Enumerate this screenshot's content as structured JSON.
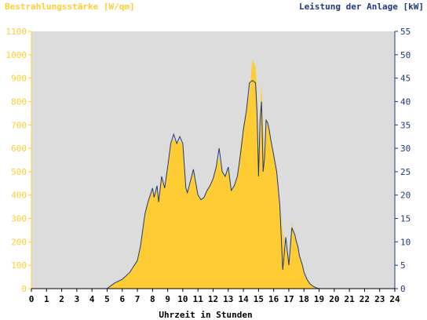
{
  "chart_data": {
    "type": "area",
    "title_left": "Bestrahlungsstärke [W/qm]",
    "title_right": "Leistung der Anlage [kW]",
    "xlabel": "Uhrzeit in Stunden",
    "x_ticks": [
      "0",
      "1",
      "2",
      "3",
      "4",
      "5",
      "6",
      "7",
      "8",
      "9",
      "10",
      "11",
      "12",
      "13",
      "14",
      "15",
      "16",
      "17",
      "18",
      "19",
      "20",
      "21",
      "22",
      "23",
      "24"
    ],
    "xlim": [
      0,
      24
    ],
    "y_left": {
      "lim": [
        0,
        1100
      ],
      "ticks": [
        "0",
        "100",
        "200",
        "300",
        "400",
        "500",
        "600",
        "700",
        "800",
        "900",
        "1000",
        "1100"
      ]
    },
    "y_right": {
      "lim": [
        0,
        55
      ],
      "ticks": [
        "0",
        "5",
        "10",
        "15",
        "20",
        "25",
        "30",
        "35",
        "40",
        "45",
        "50",
        "55"
      ]
    },
    "colors": {
      "area": "#ffcc33",
      "line": "#1f3a7a",
      "plot_bg": "#dcdcdc",
      "left_axis": "#ffcc33",
      "right_axis": "#1f3a7a"
    },
    "series": [
      {
        "name": "Bestrahlungsstärke",
        "axis": "left",
        "style": "area",
        "x": [
          0,
          5,
          5.2,
          5.5,
          6,
          6.5,
          7,
          7.2,
          7.5,
          7.7,
          8,
          8.1,
          8.3,
          8.4,
          8.6,
          8.8,
          9,
          9.2,
          9.4,
          9.6,
          9.8,
          10,
          10.2,
          10.3,
          10.5,
          10.7,
          11,
          11.2,
          11.4,
          11.6,
          11.8,
          12,
          12.2,
          12.4,
          12.6,
          12.8,
          13,
          13.2,
          13.4,
          13.6,
          13.8,
          14,
          14.2,
          14.4,
          14.6,
          14.8,
          14.9,
          15,
          15.1,
          15.2,
          15.3,
          15.4,
          15.5,
          15.6,
          15.7,
          15.8,
          16,
          16.2,
          16.4,
          16.6,
          16.8,
          17,
          17.2,
          17.4,
          17.5,
          17.6,
          17.7,
          17.8,
          17.9,
          18,
          18.2,
          18.4,
          18.6,
          18.8,
          19,
          19.3,
          19.6,
          20,
          24
        ],
        "y": [
          0,
          0,
          10,
          25,
          40,
          70,
          120,
          180,
          320,
          370,
          430,
          390,
          440,
          370,
          480,
          430,
          520,
          620,
          640,
          620,
          630,
          620,
          430,
          410,
          460,
          510,
          400,
          380,
          390,
          420,
          440,
          470,
          520,
          560,
          500,
          480,
          510,
          420,
          440,
          480,
          600,
          700,
          760,
          840,
          980,
          950,
          840,
          560,
          750,
          880,
          680,
          560,
          730,
          700,
          680,
          640,
          570,
          500,
          360,
          240,
          180,
          120,
          280,
          230,
          210,
          180,
          140,
          120,
          100,
          70,
          40,
          20,
          10,
          5,
          0,
          0,
          0,
          0,
          0
        ]
      },
      {
        "name": "Leistung der Anlage",
        "axis": "right",
        "style": "line",
        "x": [
          0,
          5,
          5.2,
          5.5,
          6,
          6.5,
          7,
          7.2,
          7.5,
          7.7,
          8,
          8.1,
          8.3,
          8.4,
          8.6,
          8.8,
          9,
          9.2,
          9.4,
          9.6,
          9.8,
          10,
          10.2,
          10.3,
          10.5,
          10.7,
          11,
          11.2,
          11.4,
          11.6,
          11.8,
          12,
          12.2,
          12.4,
          12.6,
          12.8,
          13,
          13.2,
          13.4,
          13.6,
          13.8,
          14,
          14.2,
          14.4,
          14.6,
          14.8,
          14.9,
          15,
          15.1,
          15.2,
          15.3,
          15.4,
          15.5,
          15.6,
          15.7,
          15.8,
          16,
          16.2,
          16.4,
          16.6,
          16.8,
          17,
          17.2,
          17.4,
          17.5,
          17.6,
          17.7,
          17.8,
          17.9,
          18,
          18.2,
          18.4,
          18.6,
          18.8,
          19,
          19.3,
          19.6,
          20,
          24
        ],
        "y": [
          0,
          0,
          0.5,
          1.2,
          2,
          3.5,
          6,
          9,
          16,
          18.5,
          21.5,
          19.5,
          22,
          18.5,
          24,
          21.5,
          26,
          31,
          33,
          31,
          32.5,
          31,
          21.5,
          20.5,
          23,
          25.5,
          20,
          19,
          19.5,
          21,
          22,
          23.5,
          26,
          30,
          25,
          24,
          26,
          21,
          22,
          24,
          28.5,
          34,
          38,
          44,
          44.5,
          44,
          38,
          24,
          36,
          40,
          25,
          28,
          36,
          35.5,
          34,
          32,
          28.5,
          25,
          18,
          4,
          11,
          5,
          13,
          11.5,
          10,
          9,
          7,
          6,
          5,
          3.5,
          2,
          1,
          0.5,
          0.2,
          0,
          0,
          0,
          0,
          0
        ]
      }
    ]
  }
}
